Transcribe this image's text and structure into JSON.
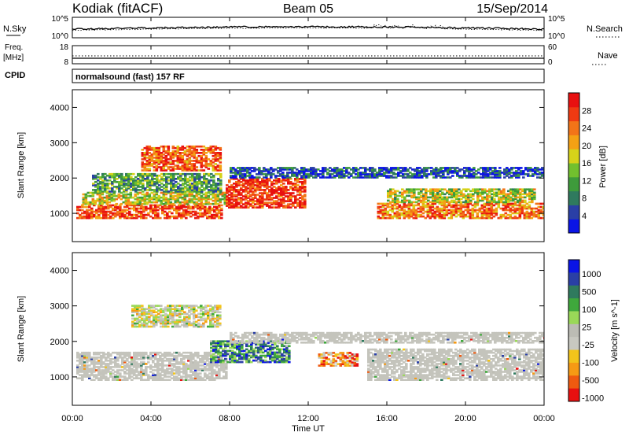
{
  "header": {
    "station": "Kodiak (fitACF)",
    "beam": "Beam 05",
    "date": "15/Sep/2014"
  },
  "status": {
    "nsky_label": "N.Sky",
    "nsearch_label": "N.Search",
    "nsky_ticks": [
      "10^5",
      "10^0"
    ],
    "nsearch_ticks": [
      "10^5",
      "10^0"
    ],
    "freq_label_1": "Freq.",
    "freq_label_2": "[MHz]",
    "freq_ticks": [
      "18",
      "8"
    ],
    "nave_label": "Nave",
    "nave_ticks": [
      "60",
      "0"
    ],
    "cpid_label": "CPID",
    "cpid_value": "normalsound (fast) 157 RF"
  },
  "xaxis": {
    "label": "Time UT",
    "ticks": [
      "00:00",
      "04:00",
      "08:00",
      "12:00",
      "16:00",
      "20:00",
      "00:00"
    ]
  },
  "colors": {
    "power_scale": [
      "#0a14e6",
      "#2a3fa6",
      "#2f7a5e",
      "#3e9b3b",
      "#72c02e",
      "#d6d21a",
      "#f4a114",
      "#f27418",
      "#ef3a12",
      "#e81010"
    ],
    "velocity_scale": [
      "#e81010",
      "#ef5a10",
      "#f69a14",
      "#f2c41b",
      "#c8c8c0",
      "#bcbcb4",
      "#9ad858",
      "#3fa83c",
      "#2f7a5e",
      "#2a3fa6",
      "#0a14e6"
    ],
    "ground_scatter": "#c4c4bc"
  },
  "chart_data": [
    {
      "type": "heatmap",
      "panel": "power",
      "ylabel": "Slant Range [km]",
      "yticks": [
        "1000",
        "2000",
        "3000",
        "4000"
      ],
      "ylim": [
        200,
        4500
      ],
      "xlim_hours": [
        0,
        24
      ],
      "colorbar_label": "Power [dB]",
      "colorbar_ticks": [
        "4",
        "8",
        "12",
        "16",
        "20",
        "24",
        "28"
      ],
      "regions": [
        {
          "t0": 0.2,
          "t1": 7.6,
          "r0": 850,
          "r1": 1250,
          "level": 0.85
        },
        {
          "t0": 0.5,
          "t1": 7.8,
          "r0": 1250,
          "r1": 1600,
          "level": 0.55
        },
        {
          "t0": 1.0,
          "t1": 7.5,
          "r0": 1600,
          "r1": 2100,
          "level": 0.35
        },
        {
          "t0": 3.5,
          "t1": 7.5,
          "r0": 2200,
          "r1": 2900,
          "level": 0.8
        },
        {
          "t0": 7.8,
          "t1": 11.8,
          "r0": 1150,
          "r1": 2000,
          "level": 0.9
        },
        {
          "t0": 15.5,
          "t1": 24.0,
          "r0": 850,
          "r1": 1300,
          "level": 0.75
        },
        {
          "t0": 16.0,
          "t1": 23.5,
          "r0": 1300,
          "r1": 1700,
          "level": 0.5
        },
        {
          "t0": 8.0,
          "t1": 24.0,
          "r0": 2000,
          "r1": 2300,
          "level": 0.15
        }
      ]
    },
    {
      "type": "heatmap",
      "panel": "velocity",
      "ylabel": "Slant Range [km]",
      "yticks": [
        "1000",
        "2000",
        "3000",
        "4000"
      ],
      "ylim": [
        200,
        4500
      ],
      "xlim_hours": [
        0,
        24
      ],
      "colorbar_label": "Velocity [m s^-1]",
      "colorbar_ticks": [
        "1000",
        "500",
        "100",
        "25",
        "-25",
        "-100",
        "-500",
        "-1000"
      ],
      "regions": [
        {
          "t0": 0.2,
          "t1": 7.8,
          "r0": 900,
          "r1": 1700,
          "level": "ground"
        },
        {
          "t0": 7.0,
          "t1": 11.0,
          "r0": 1400,
          "r1": 2000,
          "level": 0.75
        },
        {
          "t0": 3.0,
          "t1": 7.5,
          "r0": 2400,
          "r1": 3000,
          "level": 0.45
        },
        {
          "t0": 12.5,
          "t1": 14.5,
          "r0": 1300,
          "r1": 1700,
          "level": 0.25
        },
        {
          "t0": 15.0,
          "t1": 24.0,
          "r0": 900,
          "r1": 1800,
          "level": "ground"
        },
        {
          "t0": 8.0,
          "t1": 24.0,
          "r0": 1950,
          "r1": 2250,
          "level": "ground"
        }
      ]
    }
  ]
}
